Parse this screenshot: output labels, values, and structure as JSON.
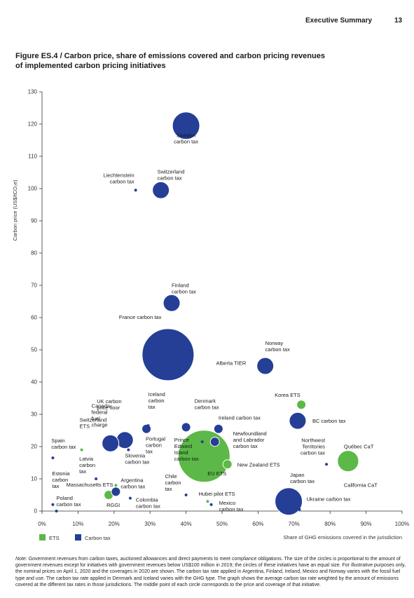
{
  "header": {
    "section": "Executive Summary",
    "page": "13"
  },
  "figure_title_line1": "Figure ES.4 / Carbon price, share of emissions covered and carbon pricing revenues",
  "figure_title_line2": "of implemented carbon pricing initiatives",
  "note_label": "Note:",
  "note_text": "Government revenues from carbon taxes, auctioned allowances and direct payments to meet compliance obligations. The size of the circles is proportional to the amount of government revenues except for initiatives with government revenues below US$100 million in 2019; the circles of these initiatives have an equal size. For illustrative purposes only, the nominal prices on April 1, 2020 and the coverages in 2020 are shown. The carbon tax rate applied in Argentina, Finland, Ireland, Mexico and Norway varies with the fossil fuel type and use. The carbon tax rate applied in Denmark and Iceland varies with the GHG type. The graph shows the average carbon tax rate weighted by the amount of emissions covered at the different tax rates in those jurisdictions. The middle point of each circle corresponds to the price and coverage of that initiative.",
  "colors": {
    "ets": "#5cb847",
    "tax": "#253f97",
    "axis": "#333333",
    "grid": "#d0d0d0"
  },
  "chart_data": {
    "type": "scatter",
    "title": "Figure ES.4 / Carbon price, share of emissions covered and carbon pricing revenues of implemented carbon pricing initiatives",
    "xlabel": "Share of GHG emissions covered in the jurisdiction",
    "ylabel": "Carbon price (US$/tCO₂e)",
    "xlim": [
      0,
      100
    ],
    "ylim": [
      0,
      130
    ],
    "x_ticks": [
      "0%",
      "10%",
      "20%",
      "30%",
      "40%",
      "50%",
      "60%",
      "70%",
      "80%",
      "90%",
      "100%"
    ],
    "y_ticks": [
      "0",
      "10",
      "20",
      "30",
      "40",
      "50",
      "60",
      "70",
      "80",
      "90",
      "100",
      "110",
      "120",
      "130"
    ],
    "grid": false,
    "legend": {
      "placement": "bottom-left",
      "entries": [
        "ETS",
        "Carbon tax"
      ]
    },
    "points": [
      {
        "label": "Sweden carbon tax",
        "type": "Carbon tax",
        "x": 40,
        "y": 119.5,
        "size": "large"
      },
      {
        "label": "Switzerland carbon tax",
        "type": "Carbon tax",
        "x": 33,
        "y": 99.5,
        "size": "medium"
      },
      {
        "label": "Liechtenstein carbon tax",
        "type": "Carbon tax",
        "x": 26,
        "y": 99.5,
        "size": "small"
      },
      {
        "label": "Finland carbon tax",
        "type": "Carbon tax",
        "x": 36,
        "y": 64.5,
        "size": "medium"
      },
      {
        "label": "France carbon tax",
        "type": "Carbon tax",
        "x": 35,
        "y": 48.5,
        "size": "very large"
      },
      {
        "label": "Norway carbon tax",
        "type": "Carbon tax",
        "x": 62,
        "y": 45,
        "size": "medium"
      },
      {
        "label": "Denmark carbon tax",
        "type": "Carbon tax",
        "x": 40,
        "y": 26,
        "size": "small-medium"
      },
      {
        "label": "Switzerland ETS",
        "type": "ETS",
        "x": 11,
        "y": 19,
        "size": "small"
      },
      {
        "label": "UK carbon price floor",
        "type": "Carbon tax",
        "x": 23,
        "y": 22,
        "size": "medium"
      },
      {
        "label": "Canada federal fuel charge",
        "type": "Carbon tax",
        "x": 19,
        "y": 21,
        "size": "medium"
      },
      {
        "label": "Iceland carbon tax",
        "type": "Carbon tax",
        "x": 29.5,
        "y": 26.5,
        "size": "small"
      },
      {
        "label": "Portugal carbon tax",
        "type": "Carbon tax",
        "x": 29,
        "y": 25.5,
        "size": "small-medium"
      },
      {
        "label": "Alberta TIER",
        "type": "ETS",
        "x": 46,
        "y": 21,
        "size": "small"
      },
      {
        "label": "Ireland carbon tax",
        "type": "Carbon tax",
        "x": 49,
        "y": 25.5,
        "size": "small-medium"
      },
      {
        "label": "Korea ETS",
        "type": "ETS",
        "x": 72,
        "y": 33,
        "size": "small-medium"
      },
      {
        "label": "BC carbon tax",
        "type": "Carbon tax",
        "x": 71,
        "y": 28,
        "size": "medium"
      },
      {
        "label": "Prince Edward Island carbon tax",
        "type": "Carbon tax",
        "x": 44.5,
        "y": 21.5,
        "size": "small"
      },
      {
        "label": "Newfoundland and Labrador carbon tax",
        "type": "Carbon tax",
        "x": 48,
        "y": 21.5,
        "size": "small-medium"
      },
      {
        "label": "EU ETS",
        "type": "ETS",
        "x": 45,
        "y": 17,
        "size": "very large"
      },
      {
        "label": "New Zealand ETS",
        "type": "ETS",
        "x": 51.5,
        "y": 14.5,
        "size": "small-medium"
      },
      {
        "label": "Northwest Territories carbon tax",
        "type": "Carbon tax",
        "x": 79,
        "y": 14.5,
        "size": "small"
      },
      {
        "label": "Québec CaT",
        "type": "ETS",
        "x": 85,
        "y": 15.5,
        "size": "medium"
      },
      {
        "label": "California CaT",
        "type": "ETS",
        "x": 85,
        "y": 15.5,
        "size": "medium"
      },
      {
        "label": "Spain carbon tax",
        "type": "Carbon tax",
        "x": 3,
        "y": 16.5,
        "size": "small"
      },
      {
        "label": "Latvia carbon tax",
        "type": "Carbon tax",
        "x": 15,
        "y": 10,
        "size": "small"
      },
      {
        "label": "Slovenia carbon tax",
        "type": "Carbon tax",
        "x": 24,
        "y": 19,
        "size": "small"
      },
      {
        "label": "Estonia carbon tax",
        "type": "Carbon tax",
        "x": 3,
        "y": 2,
        "size": "small"
      },
      {
        "label": "Poland carbon tax",
        "type": "Carbon tax",
        "x": 4,
        "y": 0,
        "size": "small"
      },
      {
        "label": "Massachusetts ETS",
        "type": "ETS",
        "x": 20.5,
        "y": 8,
        "size": "small"
      },
      {
        "label": "RGGI",
        "type": "ETS",
        "x": 18.5,
        "y": 5,
        "size": "small-medium"
      },
      {
        "label": "Argentina carbon tax",
        "type": "Carbon tax",
        "x": 20.5,
        "y": 6,
        "size": "small-medium"
      },
      {
        "label": "Colombia carbon tax",
        "type": "Carbon tax",
        "x": 24.5,
        "y": 4,
        "size": "small"
      },
      {
        "label": "Chile carbon tax",
        "type": "Carbon tax",
        "x": 40,
        "y": 5,
        "size": "small"
      },
      {
        "label": "Hubei pilot ETS",
        "type": "ETS",
        "x": 46,
        "y": 3,
        "size": "small"
      },
      {
        "label": "Mexico carbon tax",
        "type": "Carbon tax",
        "x": 47,
        "y": 2,
        "size": "small"
      },
      {
        "label": "Japan carbon tax",
        "type": "Carbon tax",
        "x": 68.5,
        "y": 3,
        "size": "large"
      },
      {
        "label": "Ukraine carbon tax",
        "type": "Carbon tax",
        "x": 71.5,
        "y": 0.5,
        "size": "small"
      }
    ]
  }
}
